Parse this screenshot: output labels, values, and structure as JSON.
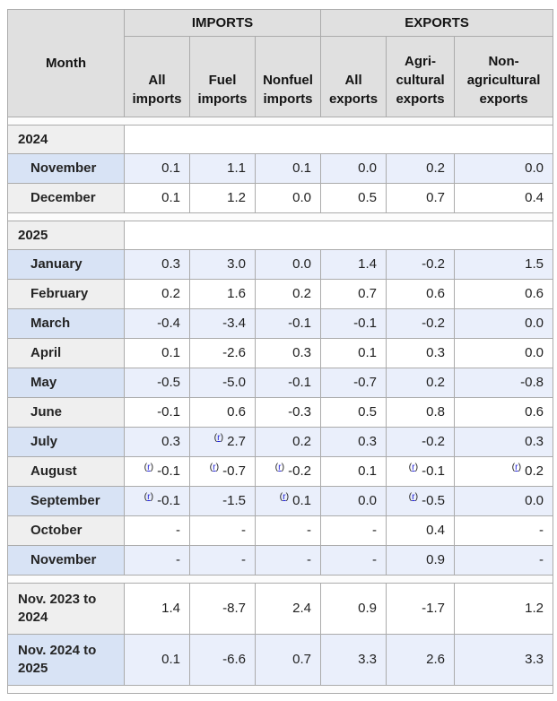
{
  "table": {
    "month_header": "Month",
    "groups": [
      {
        "label": "IMPORTS"
      },
      {
        "label": "EXPORTS"
      }
    ],
    "columns": [
      "All\nimports",
      "Fuel\nimports",
      "Nonfuel\nimports",
      "All\nexports",
      "Agri-\ncultural\nexports",
      "Non-\nagricultural\nexports"
    ],
    "footnote_marker": "r",
    "rows": [
      {
        "type": "spacer"
      },
      {
        "type": "year",
        "label": "2024"
      },
      {
        "type": "data",
        "shade": "blue",
        "label": "November",
        "cells": [
          {
            "v": "0.1"
          },
          {
            "v": "1.1"
          },
          {
            "v": "0.1"
          },
          {
            "v": "0.0"
          },
          {
            "v": "0.2"
          },
          {
            "v": "0.0"
          }
        ]
      },
      {
        "type": "data",
        "shade": "plain",
        "label": "December",
        "cells": [
          {
            "v": "0.1"
          },
          {
            "v": "1.2"
          },
          {
            "v": "0.0"
          },
          {
            "v": "0.5"
          },
          {
            "v": "0.7"
          },
          {
            "v": "0.4"
          }
        ]
      },
      {
        "type": "spacer"
      },
      {
        "type": "year",
        "label": "2025"
      },
      {
        "type": "data",
        "shade": "blue",
        "label": "January",
        "cells": [
          {
            "v": "0.3"
          },
          {
            "v": "3.0"
          },
          {
            "v": "0.0"
          },
          {
            "v": "1.4"
          },
          {
            "v": "-0.2"
          },
          {
            "v": "1.5"
          }
        ]
      },
      {
        "type": "data",
        "shade": "plain",
        "label": "February",
        "cells": [
          {
            "v": "0.2"
          },
          {
            "v": "1.6"
          },
          {
            "v": "0.2"
          },
          {
            "v": "0.7"
          },
          {
            "v": "0.6"
          },
          {
            "v": "0.6"
          }
        ]
      },
      {
        "type": "data",
        "shade": "blue",
        "label": "March",
        "cells": [
          {
            "v": "-0.4"
          },
          {
            "v": "-3.4"
          },
          {
            "v": "-0.1"
          },
          {
            "v": "-0.1"
          },
          {
            "v": "-0.2"
          },
          {
            "v": "0.0"
          }
        ]
      },
      {
        "type": "data",
        "shade": "plain",
        "label": "April",
        "cells": [
          {
            "v": "0.1"
          },
          {
            "v": "-2.6"
          },
          {
            "v": "0.3"
          },
          {
            "v": "0.1"
          },
          {
            "v": "0.3"
          },
          {
            "v": "0.0"
          }
        ]
      },
      {
        "type": "data",
        "shade": "blue",
        "label": "May",
        "cells": [
          {
            "v": "-0.5"
          },
          {
            "v": "-5.0"
          },
          {
            "v": "-0.1"
          },
          {
            "v": "-0.7"
          },
          {
            "v": "0.2"
          },
          {
            "v": "-0.8"
          }
        ]
      },
      {
        "type": "data",
        "shade": "plain",
        "label": "June",
        "cells": [
          {
            "v": "-0.1"
          },
          {
            "v": "0.6"
          },
          {
            "v": "-0.3"
          },
          {
            "v": "0.5"
          },
          {
            "v": "0.8"
          },
          {
            "v": "0.6"
          }
        ]
      },
      {
        "type": "data",
        "shade": "blue",
        "label": "July",
        "cells": [
          {
            "v": "0.3"
          },
          {
            "v": "2.7",
            "r": true
          },
          {
            "v": "0.2"
          },
          {
            "v": "0.3"
          },
          {
            "v": "-0.2"
          },
          {
            "v": "0.3"
          }
        ]
      },
      {
        "type": "data",
        "shade": "plain",
        "label": "August",
        "cells": [
          {
            "v": "-0.1",
            "r": true
          },
          {
            "v": "-0.7",
            "r": true
          },
          {
            "v": "-0.2",
            "r": true
          },
          {
            "v": "0.1"
          },
          {
            "v": "-0.1",
            "r": true
          },
          {
            "v": "0.2",
            "r": true
          }
        ]
      },
      {
        "type": "data",
        "shade": "blue",
        "label": "September",
        "cells": [
          {
            "v": "-0.1",
            "r": true
          },
          {
            "v": "-1.5"
          },
          {
            "v": "0.1",
            "r": true
          },
          {
            "v": "0.0"
          },
          {
            "v": "-0.5",
            "r": true
          },
          {
            "v": "0.0"
          }
        ]
      },
      {
        "type": "data",
        "shade": "plain",
        "label": "October",
        "cells": [
          {
            "v": "-"
          },
          {
            "v": "-"
          },
          {
            "v": "-"
          },
          {
            "v": "-"
          },
          {
            "v": "0.4"
          },
          {
            "v": "-"
          }
        ]
      },
      {
        "type": "data",
        "shade": "blue",
        "label": "November",
        "cells": [
          {
            "v": "-"
          },
          {
            "v": "-"
          },
          {
            "v": "-"
          },
          {
            "v": "-"
          },
          {
            "v": "0.9"
          },
          {
            "v": "-"
          }
        ]
      },
      {
        "type": "spacer"
      },
      {
        "type": "summary",
        "shade": "plain",
        "label": "Nov. 2023 to\n2024",
        "cells": [
          {
            "v": "1.4"
          },
          {
            "v": "-8.7"
          },
          {
            "v": "2.4"
          },
          {
            "v": "0.9"
          },
          {
            "v": "-1.7"
          },
          {
            "v": "1.2"
          }
        ]
      },
      {
        "type": "summary",
        "shade": "blue",
        "label": "Nov. 2024 to\n2025",
        "cells": [
          {
            "v": "0.1"
          },
          {
            "v": "-6.6"
          },
          {
            "v": "0.7"
          },
          {
            "v": "3.3"
          },
          {
            "v": "2.6"
          },
          {
            "v": "3.3"
          }
        ]
      },
      {
        "type": "spacer"
      }
    ]
  },
  "colors": {
    "header_bg": "#e0e0e0",
    "gray_cell_bg": "#efefef",
    "month_blue_bg": "#d8e3f5",
    "data_blue_bg": "#eaeffb",
    "plain_bg": "#ffffff",
    "spacer_bg": "#fcfcfc",
    "border": "#ababab",
    "text": "#1f1f1f",
    "link_blue": "#2323d7"
  }
}
